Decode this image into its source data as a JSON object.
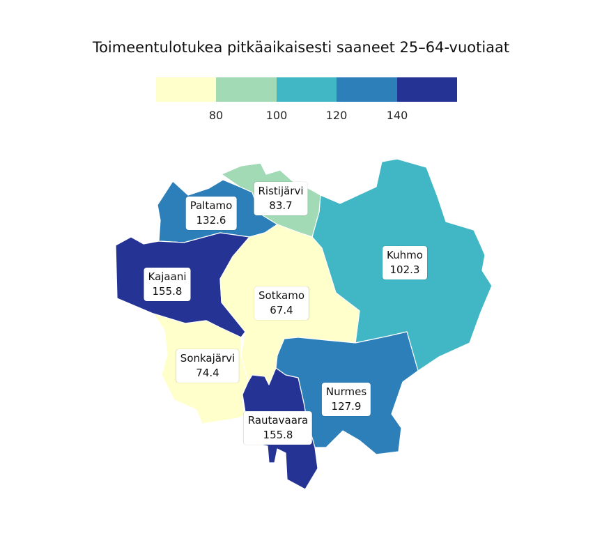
{
  "title": "Toimeentulotukea pitkäaikaisesti saaneet 25–64-vuotiaat",
  "legend": {
    "colors": [
      "#ffffcc",
      "#a1dab4",
      "#41b6c4",
      "#2c7fb8",
      "#253494"
    ],
    "ticks": [
      "80",
      "100",
      "120",
      "140"
    ]
  },
  "regions": [
    {
      "name": "Ristijärvi",
      "value": "83.7",
      "color": "#a1dab4"
    },
    {
      "name": "Paltamo",
      "value": "132.6",
      "color": "#2c7fb8"
    },
    {
      "name": "Kuhmo",
      "value": "102.3",
      "color": "#41b6c4"
    },
    {
      "name": "Kajaani",
      "value": "155.8",
      "color": "#253494"
    },
    {
      "name": "Sotkamo",
      "value": "67.4",
      "color": "#ffffcc"
    },
    {
      "name": "Sonkajärvi",
      "value": "74.4",
      "color": "#ffffcc"
    },
    {
      "name": "Nurmes",
      "value": "127.9",
      "color": "#2c7fb8"
    },
    {
      "name": "Rautavaara",
      "value": "155.8",
      "color": "#253494"
    }
  ]
}
